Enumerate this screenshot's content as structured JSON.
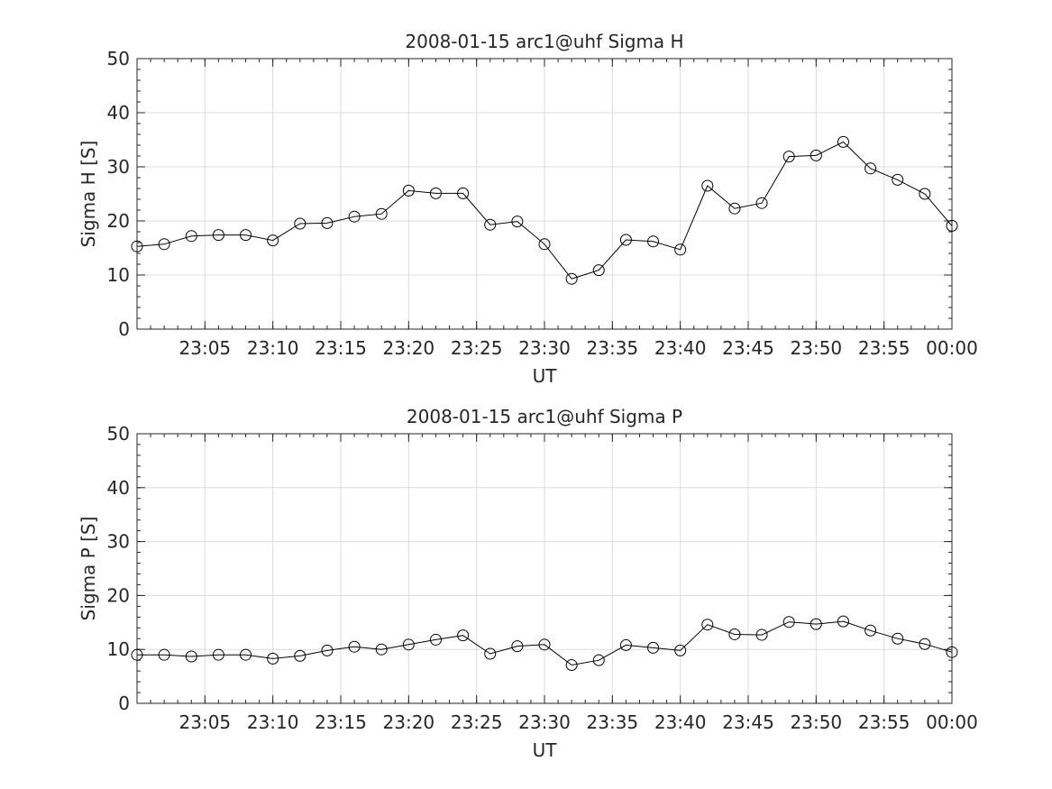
{
  "chart_data": [
    {
      "type": "line",
      "title": "2008-01-15  arc1@uhf Sigma H",
      "xlabel": "UT",
      "ylabel": "Sigma H [S]",
      "xlim": [
        "23:00",
        "00:00"
      ],
      "ylim": [
        0,
        50
      ],
      "grid": true,
      "marker": "circle",
      "line_color": "#000000",
      "x_tick_labels": [
        "23:05",
        "23:10",
        "23:15",
        "23:20",
        "23:25",
        "23:30",
        "23:35",
        "23:40",
        "23:45",
        "23:50",
        "23:55",
        "00:00"
      ],
      "y_tick_labels": [
        "0",
        "10",
        "20",
        "30",
        "40",
        "50"
      ],
      "x": [
        "23:00",
        "23:02",
        "23:04",
        "23:06",
        "23:08",
        "23:10",
        "23:12",
        "23:14",
        "23:16",
        "23:18",
        "23:20",
        "23:22",
        "23:24",
        "23:26",
        "23:28",
        "23:30",
        "23:32",
        "23:34",
        "23:36",
        "23:38",
        "23:40",
        "23:42",
        "23:44",
        "23:46",
        "23:48",
        "23:50",
        "23:52",
        "23:54",
        "23:56",
        "23:58",
        "00:00"
      ],
      "values": [
        15.3,
        15.7,
        17.2,
        17.4,
        17.4,
        16.4,
        19.5,
        19.6,
        20.8,
        21.3,
        25.6,
        25.1,
        25.1,
        19.3,
        19.9,
        15.7,
        9.3,
        10.9,
        16.5,
        16.2,
        14.7,
        26.5,
        22.3,
        23.3,
        31.9,
        32.1,
        34.6,
        29.7,
        27.6,
        25.0,
        19.1
      ]
    },
    {
      "type": "line",
      "title": "2008-01-15  arc1@uhf Sigma P",
      "xlabel": "UT",
      "ylabel": "Sigma P [S]",
      "xlim": [
        "23:00",
        "00:00"
      ],
      "ylim": [
        0,
        50
      ],
      "grid": true,
      "marker": "circle",
      "line_color": "#000000",
      "x_tick_labels": [
        "23:05",
        "23:10",
        "23:15",
        "23:20",
        "23:25",
        "23:30",
        "23:35",
        "23:40",
        "23:45",
        "23:50",
        "23:55",
        "00:00"
      ],
      "y_tick_labels": [
        "0",
        "10",
        "20",
        "30",
        "40",
        "50"
      ],
      "x": [
        "23:00",
        "23:02",
        "23:04",
        "23:06",
        "23:08",
        "23:10",
        "23:12",
        "23:14",
        "23:16",
        "23:18",
        "23:20",
        "23:22",
        "23:24",
        "23:26",
        "23:28",
        "23:30",
        "23:32",
        "23:34",
        "23:36",
        "23:38",
        "23:40",
        "23:42",
        "23:44",
        "23:46",
        "23:48",
        "23:50",
        "23:52",
        "23:54",
        "23:56",
        "23:58",
        "00:00"
      ],
      "values": [
        9.0,
        9.0,
        8.7,
        9.0,
        9.0,
        8.3,
        8.8,
        9.8,
        10.5,
        10.0,
        10.9,
        11.8,
        12.6,
        9.2,
        10.6,
        10.9,
        7.1,
        8.0,
        10.8,
        10.3,
        9.8,
        14.6,
        12.8,
        12.7,
        15.1,
        14.7,
        15.2,
        13.5,
        12.0,
        11.0,
        9.5
      ]
    }
  ]
}
